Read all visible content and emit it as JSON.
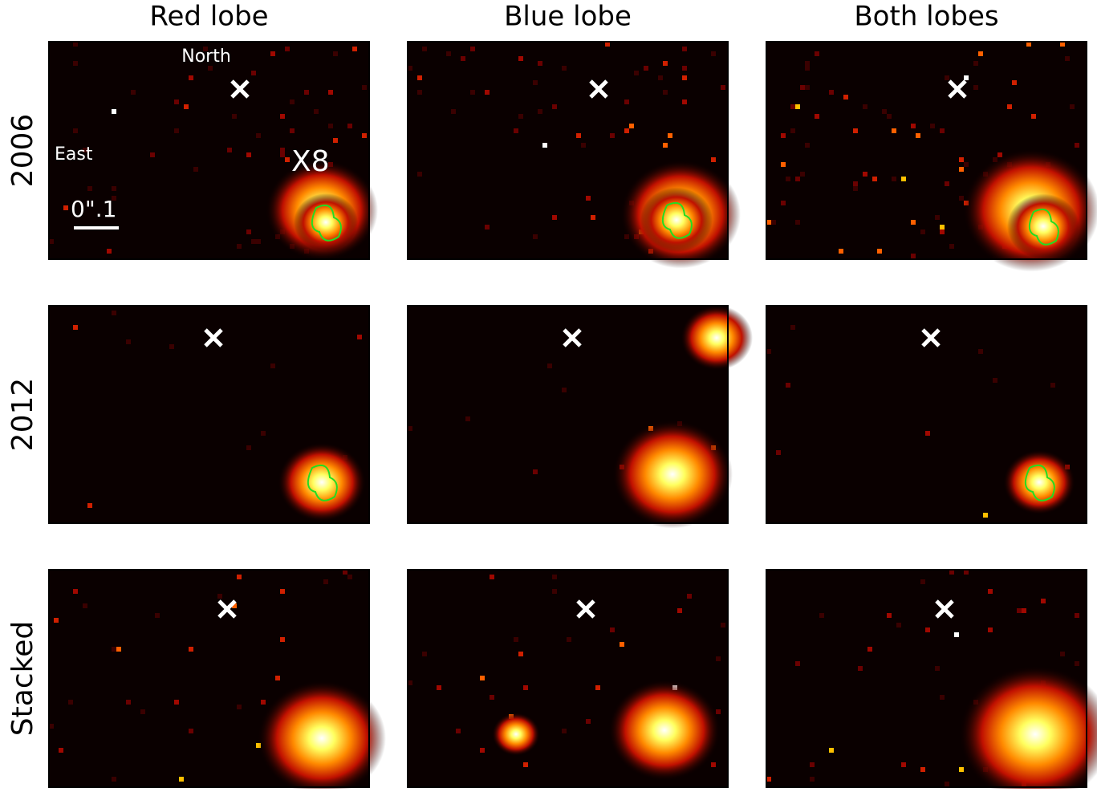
{
  "columns": [
    "Red lobe",
    "Blue lobe",
    "Both lobes"
  ],
  "rows": [
    "2006",
    "2012",
    "Stacked"
  ],
  "annotations": {
    "north": "North",
    "east": "East",
    "source": "X8",
    "scale": "0\".1"
  }
}
